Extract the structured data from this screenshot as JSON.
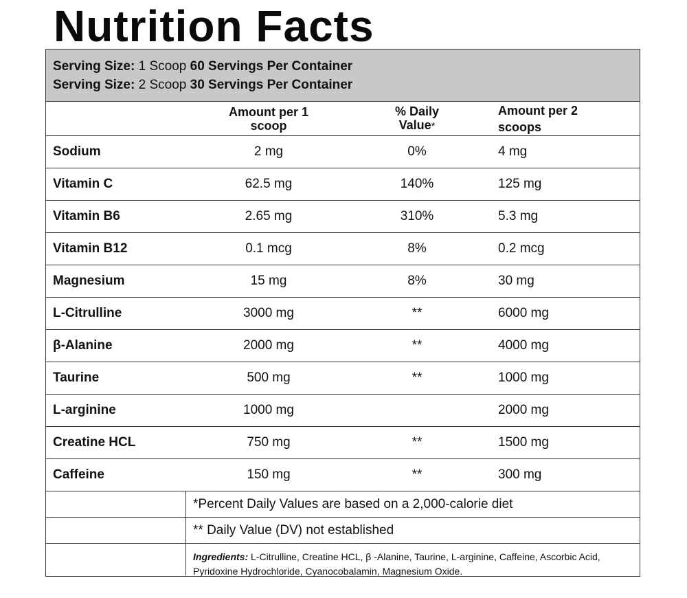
{
  "title": "Nutrition Facts",
  "serving": {
    "line1": {
      "label": "Serving Size:",
      "size": "1 Scoop",
      "servings": "60 Servings Per Container"
    },
    "line2": {
      "label": "Serving Size:",
      "size": "2 Scoop",
      "servings": "30 Servings Per Container"
    }
  },
  "table": {
    "headers": {
      "amount1_line1": "Amount per 1",
      "amount1_line2": "scoop",
      "dv_line1": "% Daily",
      "dv_line2": "Value",
      "dv_star": "*",
      "amount2_line1": "Amount per 2",
      "amount2_line2": "scoops"
    },
    "rows": [
      {
        "name": "Sodium",
        "amount1": "2 mg",
        "dv": "0%",
        "amount2": "4 mg"
      },
      {
        "name": "Vitamin C",
        "amount1": "62.5 mg",
        "dv": "140%",
        "amount2": "125 mg"
      },
      {
        "name": "Vitamin B6",
        "amount1": "2.65 mg",
        "dv": "310%",
        "amount2": "5.3 mg"
      },
      {
        "name": "Vitamin B12",
        "amount1": "0.1 mcg",
        "dv": "8%",
        "amount2": "0.2 mcg"
      },
      {
        "name": "Magnesium",
        "amount1": "15 mg",
        "dv": "8%",
        "amount2": "30 mg"
      },
      {
        "name": "L-Citrulline",
        "amount1": "3000 mg",
        "dv": "**",
        "amount2": "6000 mg"
      },
      {
        "name": "β-Alanine",
        "amount1": "2000 mg",
        "dv": "**",
        "amount2": "4000 mg"
      },
      {
        "name": "Taurine",
        "amount1": "500 mg",
        "dv": "**",
        "amount2": "1000 mg"
      },
      {
        "name": "L-arginine",
        "amount1": "1000 mg",
        "dv": "",
        "amount2": "2000 mg"
      },
      {
        "name": "Creatine HCL",
        "amount1": "750 mg",
        "dv": "**",
        "amount2": "1500 mg"
      },
      {
        "name": "Caffeine",
        "amount1": "150 mg",
        "dv": "**",
        "amount2": "300 mg"
      }
    ]
  },
  "notes": {
    "percent_dv": "*Percent Daily Values are based on a 2,000-calorie diet",
    "dv_not_established": "** Daily Value (DV) not established",
    "ingredients_label": "Ingredients:",
    "ingredients_text": "L-Citrulline, Creatine HCL, β -Alanine, Taurine, L-arginine, Caffeine, Ascorbic Acid, Pyridoxine Hydrochloride, Cyanocobalamin, Magnesium Oxide."
  },
  "colors": {
    "serving_bg": "#c8c8c8",
    "border": "#333333"
  }
}
